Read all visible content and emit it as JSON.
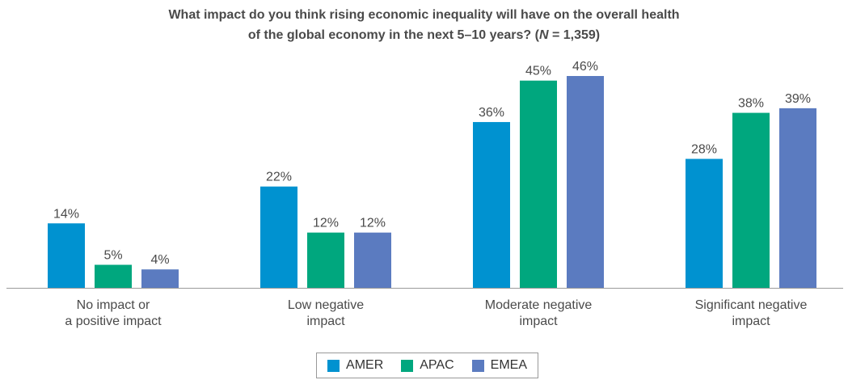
{
  "title": {
    "line1": "What impact do you think rising economic inequality will have on the overall health",
    "line2_prefix": "of the global economy in the next 5–10 years? (",
    "line2_n": "N",
    "line2_suffix": " = 1,359)"
  },
  "chart_data": {
    "type": "bar",
    "categories": [
      [
        "No impact or",
        "a positive impact"
      ],
      [
        "Low negative",
        "impact"
      ],
      [
        "Moderate negative",
        "impact"
      ],
      [
        "Significant negative",
        "impact"
      ]
    ],
    "series": [
      {
        "name": "AMER",
        "color": "#0092d0",
        "values": [
          14,
          22,
          36,
          28
        ],
        "labels": [
          "14%",
          "22%",
          "36%",
          "28%"
        ]
      },
      {
        "name": "APAC",
        "color": "#00a77e",
        "values": [
          5,
          12,
          45,
          38
        ],
        "labels": [
          "5%",
          "12%",
          "45%",
          "38%"
        ]
      },
      {
        "name": "EMEA",
        "color": "#5b7bc0",
        "values": [
          4,
          12,
          46,
          39
        ],
        "labels": [
          "4%",
          "12%",
          "46%",
          "39%"
        ]
      }
    ],
    "ylim": [
      0,
      46
    ],
    "grid": false,
    "legend_position": "bottom-center"
  }
}
